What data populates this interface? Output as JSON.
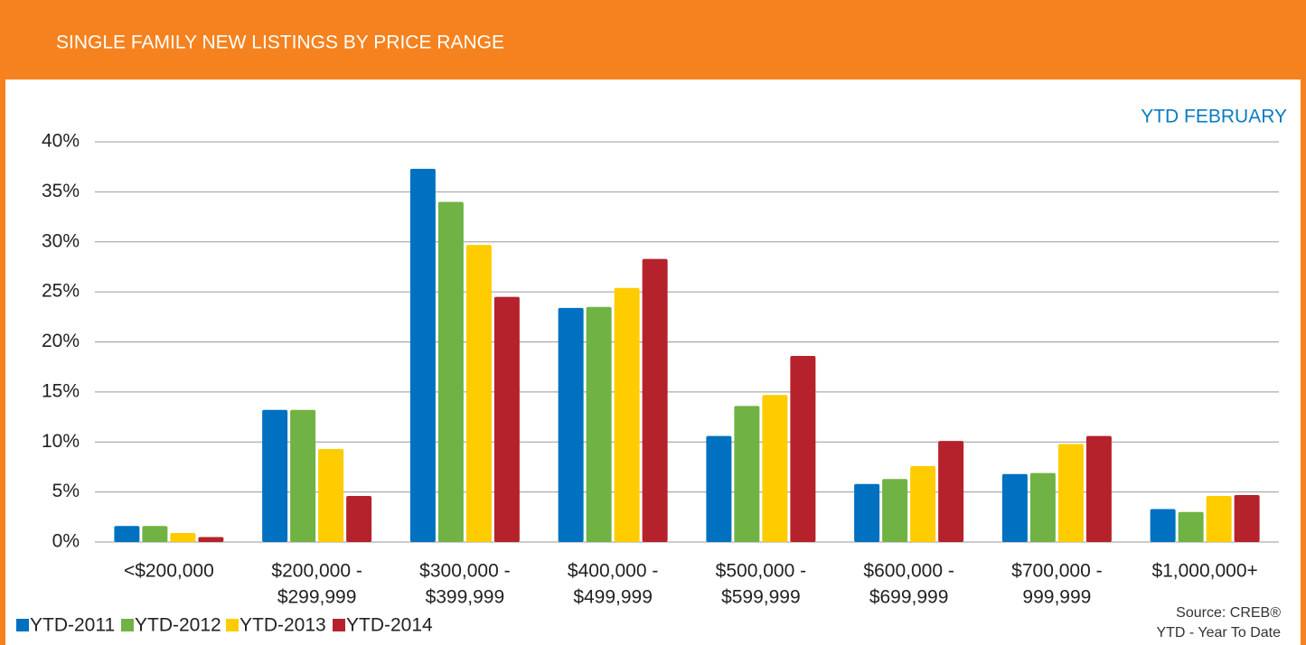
{
  "chart_data": {
    "type": "bar",
    "title": "SINGLE FAMILY NEW LISTINGS BY PRICE RANGE",
    "subtitle": "YTD FEBRUARY",
    "source": [
      "Source: CREB®",
      "YTD - Year To Date"
    ],
    "categories": [
      [
        "<$200,000"
      ],
      [
        "$200,000 -",
        "$299,999"
      ],
      [
        "$300,000 -",
        "$399,999"
      ],
      [
        "$400,000 -",
        "$499,999"
      ],
      [
        "$500,000 -",
        "$599,999"
      ],
      [
        "$600,000 -",
        "$699,999"
      ],
      [
        "$700,000 -",
        "999,999"
      ],
      [
        "$1,000,000+"
      ]
    ],
    "series": [
      {
        "name": "YTD-2011",
        "color": "#0070c0",
        "values": [
          1.6,
          13.2,
          37.3,
          23.4,
          10.6,
          5.8,
          6.8,
          3.3
        ]
      },
      {
        "name": "YTD-2012",
        "color": "#70b244",
        "values": [
          1.6,
          13.2,
          34.0,
          23.5,
          13.6,
          6.3,
          6.9,
          3.0
        ]
      },
      {
        "name": "YTD-2013",
        "color": "#ffcc00",
        "values": [
          0.9,
          9.3,
          29.7,
          25.4,
          14.7,
          7.6,
          9.8,
          4.6
        ]
      },
      {
        "name": "YTD-2014",
        "color": "#b5222c",
        "values": [
          0.5,
          4.6,
          24.5,
          28.3,
          18.6,
          10.1,
          10.6,
          4.7
        ]
      }
    ],
    "ylim": [
      0,
      40
    ],
    "yticks": [
      {
        "value": 0,
        "label": "0%"
      },
      {
        "value": 5,
        "label": "5%"
      },
      {
        "value": 10,
        "label": "10%"
      },
      {
        "value": 15,
        "label": "15%"
      },
      {
        "value": 20,
        "label": "20%"
      },
      {
        "value": 25,
        "label": "25%"
      },
      {
        "value": 30,
        "label": "30%"
      },
      {
        "value": 35,
        "label": "35%"
      },
      {
        "value": 40,
        "label": "40%"
      }
    ],
    "grid": true,
    "legend": "bottom-left"
  }
}
